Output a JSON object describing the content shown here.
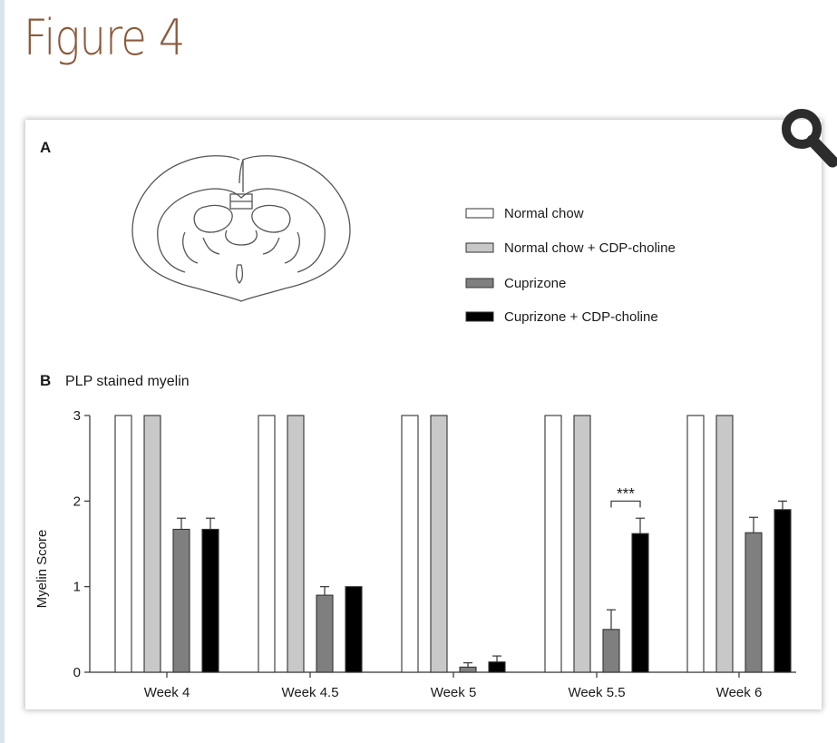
{
  "page": {
    "title": "Figure 4"
  },
  "panel_a": {
    "label": "A"
  },
  "legend": {
    "items": [
      {
        "label": "Normal chow",
        "color": "#ffffff"
      },
      {
        "label": "Normal chow + CDP-choline",
        "color": "#c8c8c8"
      },
      {
        "label": "Cuprizone",
        "color": "#7f7f7f"
      },
      {
        "label": "Cuprizone + CDP-choline",
        "color": "#000000"
      }
    ]
  },
  "panel_b": {
    "label": "B",
    "title": "PLP stained myelin"
  },
  "icons": {
    "zoom": "magnifier-icon"
  },
  "chart_data": {
    "type": "bar",
    "title": "PLP stained myelin",
    "xlabel": "",
    "ylabel": "Myelin Score",
    "ylim": [
      0,
      3
    ],
    "yticks": [
      "0",
      "1",
      "2",
      "3"
    ],
    "categories": [
      "Week 4",
      "Week 4.5",
      "Week 5",
      "Week 5.5",
      "Week 6"
    ],
    "series": [
      {
        "name": "Normal chow",
        "color": "#ffffff",
        "values": [
          3,
          3,
          3,
          3,
          3
        ],
        "errors": [
          0,
          0,
          0,
          0,
          0
        ]
      },
      {
        "name": "Normal chow + CDP-choline",
        "color": "#c8c8c8",
        "values": [
          3,
          3,
          3,
          3,
          3
        ],
        "errors": [
          0,
          0,
          0,
          0,
          0
        ]
      },
      {
        "name": "Cuprizone",
        "color": "#7f7f7f",
        "values": [
          1.67,
          0.9,
          0.06,
          0.5,
          1.63
        ],
        "errors": [
          0.13,
          0.1,
          0.05,
          0.23,
          0.18
        ]
      },
      {
        "name": "Cuprizone + CDP-choline",
        "color": "#000000",
        "values": [
          1.67,
          1.0,
          0.12,
          1.62,
          1.9
        ],
        "errors": [
          0.13,
          0,
          0.07,
          0.18,
          0.1
        ]
      }
    ],
    "annotations": [
      {
        "text": "***",
        "category": "Week 5.5"
      }
    ],
    "grid": false,
    "legend_position": "top-right"
  }
}
